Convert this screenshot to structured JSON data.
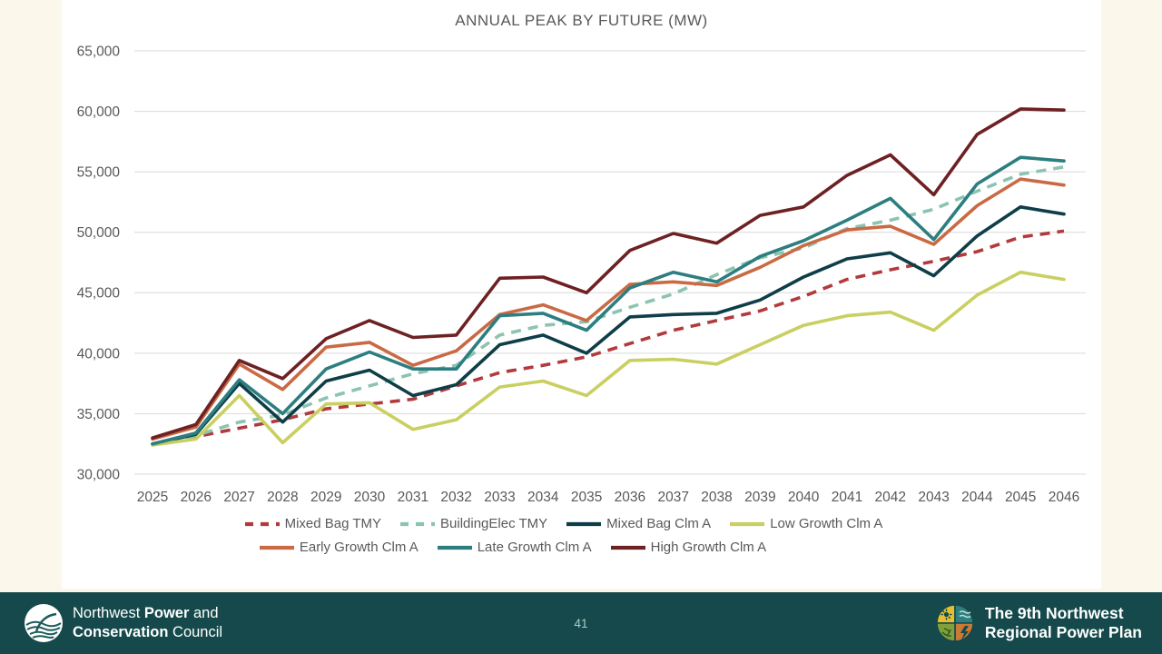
{
  "slide": {
    "title": "ANNUAL PEAK BY FUTURE (MW)",
    "page_number": "41"
  },
  "footer": {
    "left_logo": {
      "line1_a": "Northwest ",
      "line1_b": "Power",
      "line1_c": " and",
      "line2_a": "Conservation",
      "line2_b": " Council"
    },
    "right_logo": {
      "line1": "The 9th Northwest",
      "line2": "Regional Power Plan"
    }
  },
  "colors": {
    "slide_background": "#fbf7eb",
    "panel_background": "#ffffff",
    "footer_background": "#15494b",
    "gridline": "#d9d9d9",
    "axis_text": "#595959",
    "page_number_text": "#a9cfc9"
  },
  "chart_data": {
    "type": "line",
    "title": "ANNUAL PEAK BY FUTURE (MW)",
    "xlabel": "",
    "ylabel": "",
    "x": [
      2025,
      2026,
      2027,
      2028,
      2029,
      2030,
      2031,
      2032,
      2033,
      2034,
      2035,
      2036,
      2037,
      2038,
      2039,
      2040,
      2041,
      2042,
      2043,
      2044,
      2045,
      2046
    ],
    "ylim": [
      30000,
      65000
    ],
    "ytick_step": 5000,
    "grid": true,
    "legend_position": "bottom",
    "legend_rows": [
      [
        0,
        1,
        2,
        3
      ],
      [
        4,
        5,
        6
      ]
    ],
    "series": [
      {
        "name": "Mixed Bag TMY",
        "color": "#b23a3d",
        "dashed": true,
        "values": [
          32500,
          33100,
          33800,
          34500,
          35400,
          35800,
          36200,
          37300,
          38400,
          39000,
          39700,
          40800,
          41900,
          42700,
          43500,
          44700,
          46100,
          46900,
          47600,
          48400,
          49600,
          50100
        ]
      },
      {
        "name": "BuildingElec TMY",
        "color": "#8cc3b1",
        "dashed": true,
        "values": [
          32400,
          33200,
          34300,
          34900,
          36300,
          37300,
          38300,
          39000,
          41500,
          42300,
          42600,
          43800,
          44900,
          46500,
          47900,
          48700,
          50300,
          51000,
          51900,
          53400,
          54800,
          55400
        ]
      },
      {
        "name": "Mixed Bag Clm A",
        "color": "#0e3e47",
        "dashed": false,
        "values": [
          32500,
          33300,
          37500,
          34300,
          37700,
          38600,
          36500,
          37400,
          40700,
          41500,
          40000,
          43000,
          43200,
          43300,
          44400,
          46300,
          47800,
          48300,
          46400,
          49700,
          52100,
          51500
        ]
      },
      {
        "name": "Low Growth Clm A",
        "color": "#c9cf60",
        "dashed": false,
        "values": [
          32400,
          32900,
          36500,
          32600,
          35800,
          35900,
          33700,
          34500,
          37200,
          37700,
          36500,
          39400,
          39500,
          39100,
          40700,
          42300,
          43100,
          43400,
          41900,
          44800,
          46700,
          46100
        ]
      },
      {
        "name": "Early Growth Clm A",
        "color": "#c96a44",
        "dashed": false,
        "values": [
          32900,
          33900,
          39100,
          37000,
          40500,
          40900,
          39000,
          40200,
          43200,
          44000,
          42700,
          45700,
          45900,
          45600,
          47100,
          48900,
          50200,
          50500,
          49000,
          52200,
          54400,
          53900
        ]
      },
      {
        "name": "Late Growth Clm A",
        "color": "#2c7e80",
        "dashed": false,
        "values": [
          32500,
          33400,
          37800,
          35000,
          38700,
          40100,
          38700,
          38700,
          43100,
          43300,
          41900,
          45400,
          46700,
          45900,
          48000,
          49300,
          51000,
          52800,
          49400,
          54000,
          56200,
          55900
        ]
      },
      {
        "name": "High Growth Clm A",
        "color": "#6e2123",
        "dashed": false,
        "values": [
          33000,
          34100,
          39400,
          37900,
          41200,
          42700,
          41300,
          41500,
          46200,
          46300,
          45000,
          48500,
          49900,
          49100,
          51400,
          52100,
          54700,
          56400,
          53100,
          58100,
          60200,
          60100
        ]
      }
    ]
  }
}
